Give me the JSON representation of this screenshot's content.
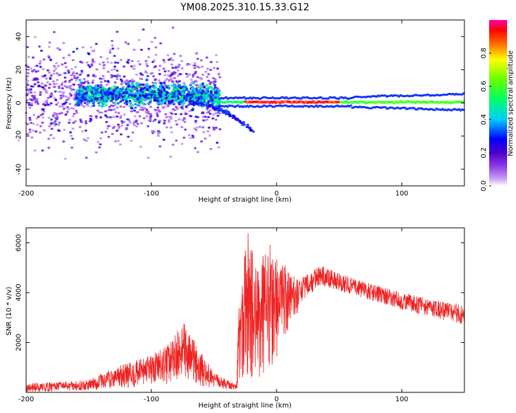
{
  "figure": {
    "title": "YM08.2025.310.15.33.G12"
  },
  "colors": {
    "snr_line": "#ee2222",
    "colormap": [
      "#ffffff",
      "#c9a6f2",
      "#8a3ae8",
      "#4d00cc",
      "#0000ff",
      "#00ccff",
      "#00ff66",
      "#ffff00",
      "#ff6600",
      "#ff0000",
      "#ff00aa"
    ]
  },
  "chart_data": [
    {
      "type": "heatmap",
      "name": "frequency-spectrogram",
      "xlabel": "Height of straight line (km)",
      "ylabel": "Frequency (Hz)",
      "xlim": [
        -200,
        150
      ],
      "ylim": [
        -50,
        50
      ],
      "xticks": [
        -200,
        -100,
        0,
        100
      ],
      "yticks": [
        -40,
        -20,
        0,
        20,
        40
      ],
      "colorbar": {
        "label": "Normalized spectral amplitude",
        "range": [
          0,
          1
        ],
        "ticks": [
          0.0,
          0.2,
          0.4,
          0.6,
          0.8
        ]
      },
      "features": [
        {
          "name": "noisy-scatter",
          "x": [
            -200,
            -45
          ],
          "freq_center": 5,
          "freq_spread": 45,
          "amplitude": [
            0.05,
            0.35
          ]
        },
        {
          "name": "central-band",
          "x": [
            -160,
            -45
          ],
          "freq_center": 5,
          "freq_spread": 10,
          "amplitude": [
            0.2,
            0.55
          ]
        },
        {
          "name": "descending-branch",
          "x": [
            -70,
            -18
          ],
          "freq_start": 0,
          "freq_end": -18,
          "amplitude": 0.2
        },
        {
          "name": "zero-frequency-line",
          "x": [
            -45,
            150
          ],
          "freq_center": 0.5,
          "amplitude": [
            0.6,
            1.0
          ]
        }
      ]
    },
    {
      "type": "line",
      "name": "snr",
      "xlabel": "Height of straight line (km)",
      "ylabel": "SNR (10 * v/v)",
      "xlim": [
        -200,
        150
      ],
      "ylim": [
        0,
        6600
      ],
      "xticks": [
        -200,
        -100,
        0,
        100
      ],
      "yticks": [
        2000,
        4000,
        6000
      ],
      "envelope": [
        {
          "x": -200,
          "low": 0,
          "high": 350
        },
        {
          "x": -150,
          "low": 80,
          "high": 500
        },
        {
          "x": -130,
          "low": 150,
          "high": 1000
        },
        {
          "x": -100,
          "low": 200,
          "high": 1500
        },
        {
          "x": -85,
          "low": 300,
          "high": 2000
        },
        {
          "x": -75,
          "low": 500,
          "high": 2900
        },
        {
          "x": -65,
          "low": 300,
          "high": 2000
        },
        {
          "x": -50,
          "low": 150,
          "high": 800
        },
        {
          "x": -32,
          "low": 100,
          "high": 300
        },
        {
          "x": -30,
          "low": 300,
          "high": 4000
        },
        {
          "x": -23,
          "low": 200,
          "high": 6600
        },
        {
          "x": -15,
          "low": 300,
          "high": 5000
        },
        {
          "x": -5,
          "low": 800,
          "high": 6200
        },
        {
          "x": 10,
          "low": 2200,
          "high": 4800
        },
        {
          "x": 20,
          "low": 3600,
          "high": 4600
        },
        {
          "x": 35,
          "low": 4300,
          "high": 5100
        },
        {
          "x": 60,
          "low": 3900,
          "high": 4600
        },
        {
          "x": 100,
          "low": 3300,
          "high": 4000
        },
        {
          "x": 150,
          "low": 2700,
          "high": 3500
        }
      ]
    }
  ]
}
